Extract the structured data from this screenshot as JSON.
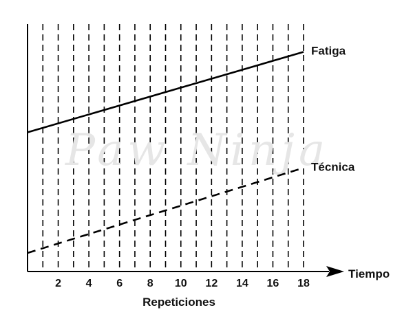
{
  "chart_data": {
    "type": "line",
    "title": "",
    "xlabel": "Repeticiones",
    "x_axis_end_label": "Tiempo",
    "ylabel": "",
    "x_ticks": [
      2,
      4,
      6,
      8,
      10,
      12,
      14,
      16,
      18
    ],
    "xlim": [
      0,
      18
    ],
    "ylim": [
      0,
      10
    ],
    "grid": "vertical-dashed",
    "series": [
      {
        "name": "Fatiga",
        "style": "solid",
        "color": "#000000",
        "x": [
          0,
          18
        ],
        "y": [
          9.0,
          14.2
        ]
      },
      {
        "name": "Técnica",
        "style": "dashed",
        "color": "#000000",
        "x": [
          0,
          18
        ],
        "y": [
          1.2,
          6.7
        ]
      }
    ]
  },
  "watermark": "Paw Ninja"
}
